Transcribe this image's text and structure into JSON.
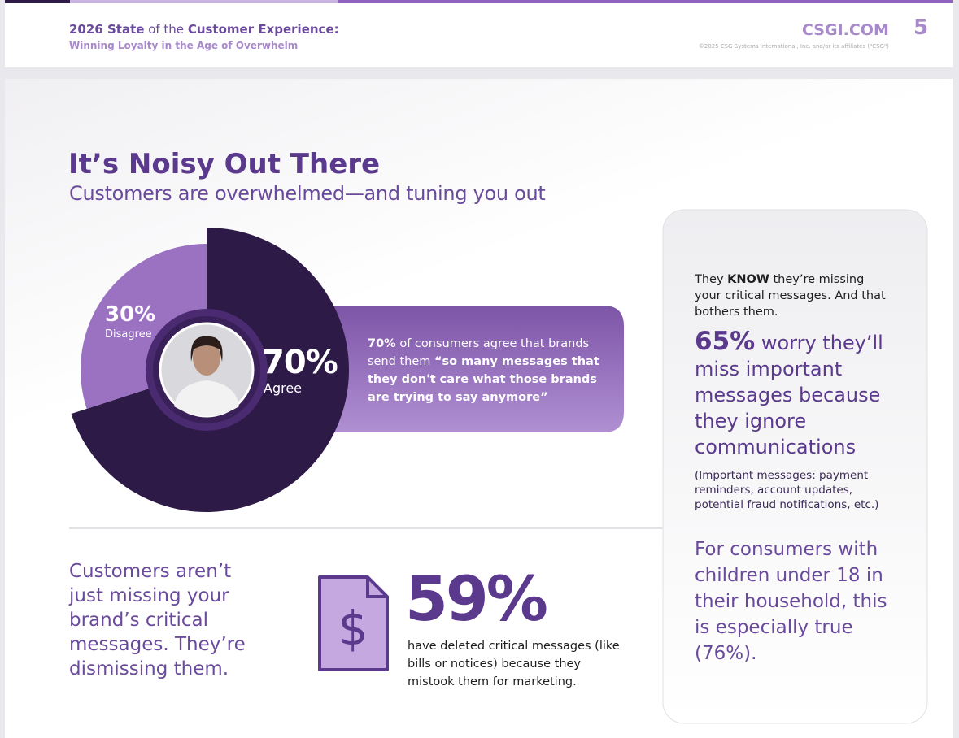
{
  "header": {
    "title_bold_1": "2026 State",
    "title_mid": " of the ",
    "title_bold_2": "Customer Experience:",
    "subtitle": "Winning Loyalty in the Age of Overwhelm",
    "site": "CSGI.COM",
    "page_number": 5,
    "copyright": "©2025 CSG Systems International, Inc. and/or its affiliates (\"CSG\")"
  },
  "section": {
    "title": "It’s Noisy Out There",
    "subtitle": "Customers are overwhelmed—and tuning you out"
  },
  "donut": {
    "segments": [
      {
        "name": "Agree",
        "value": 70,
        "label": "70%",
        "color": "#2d1a47"
      },
      {
        "name": "Disagree",
        "value": 30,
        "label": "30%",
        "color": "#9b72c2"
      }
    ]
  },
  "callout": {
    "stat": "70%",
    "text": " of consumers agree that brands send them ",
    "quote": "“so many messages that they don't care what those brands are trying to say anymore”"
  },
  "bottom": {
    "lead": "Customers aren’t just missing your brand’s critical messages. They’re dismissing them.",
    "stat": "59%",
    "text": "have deleted critical messages (like bills or notices) because they mistook them for marketing."
  },
  "side_panel": {
    "intro_1": "They ",
    "intro_bold": "KNOW",
    "intro_2": " they’re missing your critical messages. And that bothers them.",
    "stat": "65%",
    "stat_text": " worry they’ll miss important messages because they ignore communications",
    "note": "(Important messages: payment reminders, account updates, potential fraud notifications, etc.)",
    "footer": "For consumers with children under 18 in their household, this is especially true (76%)."
  }
}
